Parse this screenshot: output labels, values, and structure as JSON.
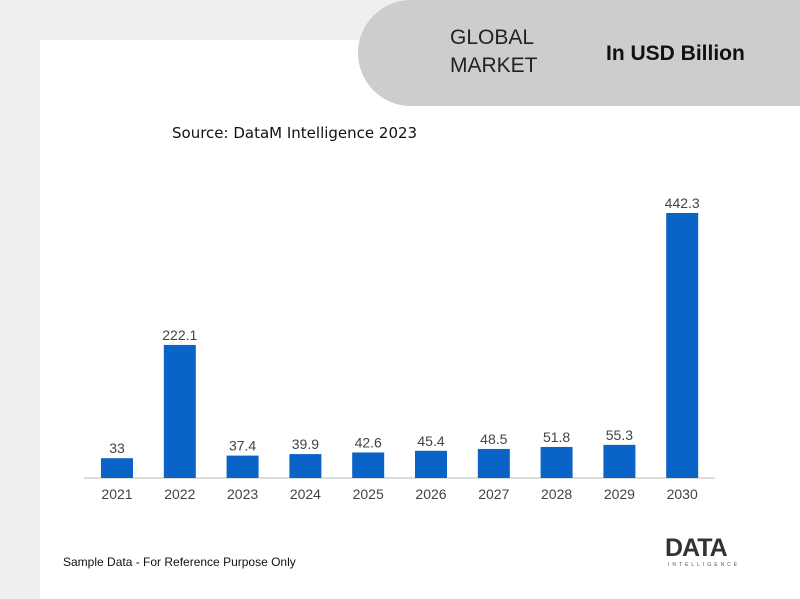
{
  "chart_data": {
    "type": "bar",
    "title": "GLOBAL MARKET",
    "unit_label": "In USD Billion",
    "subtitle": "Source: DataM Intelligence 2023",
    "categories": [
      "2021",
      "2022",
      "2023",
      "2024",
      "2025",
      "2026",
      "2027",
      "2028",
      "2029",
      "2030"
    ],
    "values": [
      33,
      222.1,
      37.4,
      39.9,
      42.6,
      45.4,
      48.5,
      51.8,
      55.3,
      442.3
    ],
    "color": "#0a63c6"
  },
  "footer": {
    "note": "Sample Data - For Reference Purpose Only",
    "logo": "DATA",
    "logo_sub": "INTELLIGENCE"
  }
}
